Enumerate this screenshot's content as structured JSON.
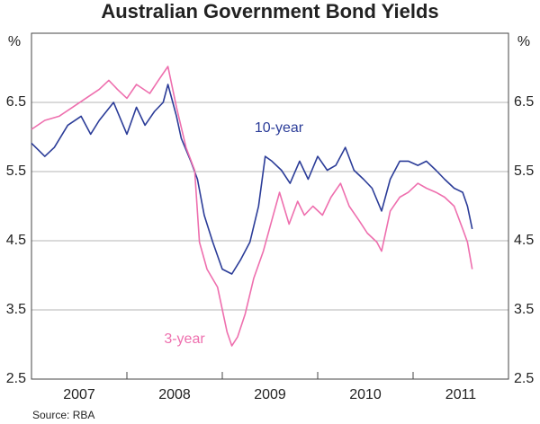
{
  "chart_data": {
    "type": "line",
    "title": "Australian Government Bond Yields",
    "ylabel": "%",
    "source": "Source: RBA",
    "xlim": [
      2007,
      2012
    ],
    "xticks": [
      {
        "value": 2007.5,
        "label": "2007"
      },
      {
        "value": 2008.5,
        "label": "2008"
      },
      {
        "value": 2009.5,
        "label": "2009"
      },
      {
        "value": 2010.5,
        "label": "2010"
      },
      {
        "value": 2011.5,
        "label": "2011"
      }
    ],
    "xminorticks": [
      2008,
      2009,
      2010,
      2011
    ],
    "ylim": [
      2.5,
      7.5
    ],
    "yticks": [
      2.5,
      3.5,
      4.5,
      5.5,
      6.5
    ],
    "grid": true,
    "series": [
      {
        "name": "10-year",
        "color": "#2b3c98",
        "x": [
          2007.0,
          2007.14,
          2007.24,
          2007.38,
          2007.52,
          2007.62,
          2007.71,
          2007.86,
          2008.0,
          2008.1,
          2008.19,
          2008.29,
          2008.38,
          2008.43,
          2008.52,
          2008.57,
          2008.67,
          2008.74,
          2008.81,
          2008.9,
          2009.0,
          2009.1,
          2009.19,
          2009.29,
          2009.38,
          2009.45,
          2009.52,
          2009.62,
          2009.71,
          2009.81,
          2009.9,
          2010.0,
          2010.1,
          2010.19,
          2010.29,
          2010.38,
          2010.48,
          2010.57,
          2010.67,
          2010.76,
          2010.86,
          2010.95,
          2011.05,
          2011.14,
          2011.24,
          2011.33,
          2011.43,
          2011.52,
          2011.57,
          2011.62
        ],
        "values": [
          5.91,
          5.72,
          5.85,
          6.17,
          6.3,
          6.04,
          6.24,
          6.5,
          6.04,
          6.43,
          6.17,
          6.37,
          6.5,
          6.76,
          6.3,
          5.98,
          5.65,
          5.39,
          4.87,
          4.48,
          4.09,
          4.02,
          4.22,
          4.48,
          5.0,
          5.72,
          5.65,
          5.52,
          5.33,
          5.65,
          5.39,
          5.72,
          5.52,
          5.59,
          5.85,
          5.52,
          5.39,
          5.26,
          4.93,
          5.39,
          5.65,
          5.65,
          5.59,
          5.65,
          5.52,
          5.39,
          5.26,
          5.2,
          5.0,
          4.67
        ]
      },
      {
        "name": "3-year",
        "color": "#ee6fae",
        "x": [
          2007.0,
          2007.14,
          2007.29,
          2007.43,
          2007.57,
          2007.71,
          2007.81,
          2007.9,
          2008.0,
          2008.1,
          2008.24,
          2008.33,
          2008.43,
          2008.52,
          2008.62,
          2008.71,
          2008.76,
          2008.84,
          2008.95,
          2009.05,
          2009.1,
          2009.16,
          2009.24,
          2009.33,
          2009.43,
          2009.52,
          2009.6,
          2009.7,
          2009.79,
          2009.86,
          2009.95,
          2010.05,
          2010.14,
          2010.24,
          2010.33,
          2010.43,
          2010.52,
          2010.62,
          2010.67,
          2010.76,
          2010.86,
          2010.95,
          2011.05,
          2011.14,
          2011.24,
          2011.33,
          2011.43,
          2011.52,
          2011.57,
          2011.62
        ],
        "values": [
          6.11,
          6.24,
          6.3,
          6.43,
          6.56,
          6.69,
          6.82,
          6.69,
          6.56,
          6.76,
          6.63,
          6.82,
          7.02,
          6.43,
          5.85,
          5.52,
          4.48,
          4.09,
          3.83,
          3.18,
          2.98,
          3.11,
          3.44,
          3.96,
          4.35,
          4.8,
          5.2,
          4.74,
          5.07,
          4.87,
          5.0,
          4.87,
          5.13,
          5.33,
          5.0,
          4.8,
          4.61,
          4.48,
          4.35,
          4.93,
          5.13,
          5.2,
          5.33,
          5.26,
          5.2,
          5.13,
          5.0,
          4.67,
          4.48,
          4.09
        ]
      }
    ]
  }
}
